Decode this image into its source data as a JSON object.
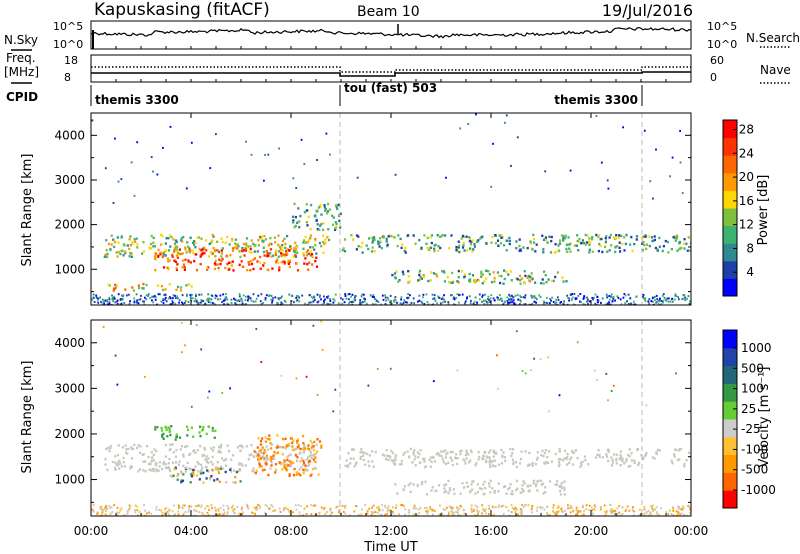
{
  "header": {
    "station": "Kapuskasing (fitACF)",
    "beam": "Beam 10",
    "date": "19/Jul/2016"
  },
  "panels": {
    "nsky": {
      "label": "N.Sky",
      "ticks_left": [
        "10^5",
        "10^0"
      ],
      "ticks_right": [
        "10^5",
        "10^0"
      ],
      "right_label": "N.Search"
    },
    "freq": {
      "label1": "Freq.",
      "label2": "[MHz]",
      "ticks_left": [
        "18",
        "8"
      ],
      "ticks_right": [
        "60",
        "0"
      ],
      "right_label": "Nave"
    },
    "cpid": {
      "label": "CPID",
      "segments": [
        "themis 3300",
        "tou (fast) 503",
        "themis 3300"
      ]
    }
  },
  "colors": {
    "power": [
      "#0000ff",
      "#1f3fa8",
      "#2e8a8f",
      "#3cb371",
      "#7fbf3f",
      "#ffd700",
      "#ff9900",
      "#ff6600",
      "#ff3300",
      "#ff0000"
    ],
    "velocity": [
      "#ff0000",
      "#ff6600",
      "#ff9900",
      "#ffbf33",
      "#cccccc",
      "#66cc33",
      "#339944",
      "#226677",
      "#2244aa",
      "#0000ff"
    ],
    "ground_scatter": "#c8c8c0"
  },
  "chart_data": [
    {
      "type": "heatmap",
      "name": "power",
      "ylabel": "Slant Range [km]",
      "yticks": [
        "1000",
        "2000",
        "3000",
        "4000"
      ],
      "ylim": [
        200,
        4500
      ],
      "xlim": [
        0,
        24
      ],
      "colorbar": {
        "label": "Power [dB]",
        "ticks": [
          "4",
          "8",
          "12",
          "16",
          "20",
          "24",
          "28"
        ],
        "range": [
          0,
          30
        ]
      },
      "bands": [
        {
          "t0": 0.5,
          "t1": 9.5,
          "r0": 1300,
          "r1": 1800,
          "level": 14
        },
        {
          "t0": 2.5,
          "t1": 9.0,
          "r0": 1000,
          "r1": 1500,
          "level": 24
        },
        {
          "t0": 0.5,
          "t1": 4.0,
          "r0": 550,
          "r1": 700,
          "level": 18
        },
        {
          "t0": 8.0,
          "t1": 10.0,
          "r0": 1900,
          "r1": 2500,
          "level": 10
        },
        {
          "t0": 10.0,
          "t1": 24.0,
          "r0": 1400,
          "r1": 1800,
          "level": 10
        },
        {
          "t0": 12.0,
          "t1": 19.0,
          "r0": 700,
          "r1": 1000,
          "level": 12
        }
      ]
    },
    {
      "type": "heatmap",
      "name": "velocity",
      "ylabel": "Slant Range [km]",
      "yticks": [
        "1000",
        "2000",
        "3000",
        "4000"
      ],
      "ylim": [
        200,
        4500
      ],
      "xlim": [
        0,
        24
      ],
      "xlabel": "Time UT",
      "xticks": [
        "00:00",
        "04:00",
        "08:00",
        "12:00",
        "16:00",
        "20:00",
        "00:00"
      ],
      "colorbar": {
        "label": "Velocity [m s⁻¹]",
        "ticks": [
          "1000",
          "500",
          "100",
          "25",
          "-25",
          "-100",
          "-500",
          "-1000"
        ]
      },
      "bands": [
        {
          "t0": 0.5,
          "t1": 9.0,
          "r0": 1200,
          "r1": 1800,
          "class": "ground"
        },
        {
          "t0": 2.5,
          "t1": 5.0,
          "r0": 1900,
          "r1": 2200,
          "class": "positive"
        },
        {
          "t0": 3.0,
          "t1": 6.0,
          "r0": 950,
          "r1": 1300,
          "class": "mixed"
        },
        {
          "t0": 6.5,
          "t1": 9.2,
          "r0": 1100,
          "r1": 2000,
          "class": "negative"
        },
        {
          "t0": 10.0,
          "t1": 24.0,
          "r0": 1300,
          "r1": 1700,
          "class": "ground"
        },
        {
          "t0": 12.0,
          "t1": 19.0,
          "r0": 700,
          "r1": 1000,
          "class": "ground"
        }
      ]
    }
  ]
}
